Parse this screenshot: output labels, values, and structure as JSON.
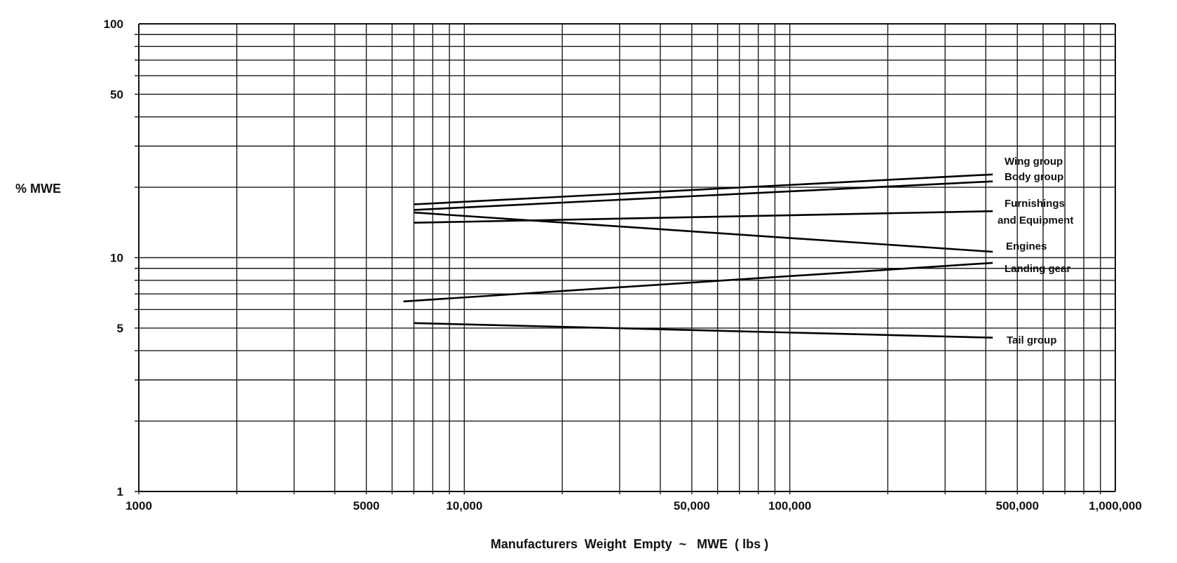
{
  "chart_data": {
    "type": "line",
    "title": "",
    "xlabel": "Manufacturers  Weight  Empty  ~   MWE  ( lbs )",
    "ylabel": "% MWE",
    "x_scale": "log",
    "y_scale": "log",
    "xlim": [
      1000,
      1000000
    ],
    "ylim": [
      1,
      100
    ],
    "grid": true,
    "x_ticks": [
      {
        "value": 1000,
        "label": "1000"
      },
      {
        "value": 5000,
        "label": "5000"
      },
      {
        "value": 10000,
        "label": "10,000"
      },
      {
        "value": 50000,
        "label": "50,000"
      },
      {
        "value": 100000,
        "label": "100,000"
      },
      {
        "value": 500000,
        "label": "500,000"
      },
      {
        "value": 1000000,
        "label": "1,000,000"
      }
    ],
    "y_ticks": [
      {
        "value": 1,
        "label": "1"
      },
      {
        "value": 5,
        "label": "5"
      },
      {
        "value": 10,
        "label": "10"
      },
      {
        "value": 50,
        "label": "50"
      },
      {
        "value": 100,
        "label": "100"
      }
    ],
    "series": [
      {
        "name": "Wing group",
        "x": [
          7000,
          420000
        ],
        "y": [
          16.9,
          22.7
        ]
      },
      {
        "name": "Body group",
        "x": [
          7000,
          420000
        ],
        "y": [
          16.0,
          21.2
        ]
      },
      {
        "name": "Furnishings and Equipment",
        "x": [
          7000,
          420000
        ],
        "y": [
          14.1,
          15.8
        ]
      },
      {
        "name": "Engines",
        "x": [
          7000,
          420000
        ],
        "y": [
          15.6,
          10.6
        ]
      },
      {
        "name": "Landing gear",
        "x": [
          6500,
          420000
        ],
        "y": [
          6.5,
          9.5
        ]
      },
      {
        "name": "Tail group",
        "x": [
          7000,
          420000
        ],
        "y": [
          5.25,
          4.55
        ]
      }
    ],
    "series_labels": [
      {
        "key": "wing",
        "lines": [
          "Wing group"
        ]
      },
      {
        "key": "body",
        "lines": [
          "Body group"
        ]
      },
      {
        "key": "furnishings",
        "lines": [
          "Furnishings",
          "and Equipment"
        ]
      },
      {
        "key": "engines",
        "lines": [
          "Engines"
        ]
      },
      {
        "key": "landing",
        "lines": [
          "Landing  gear"
        ]
      },
      {
        "key": "tail",
        "lines": [
          "Tail group"
        ]
      }
    ]
  }
}
